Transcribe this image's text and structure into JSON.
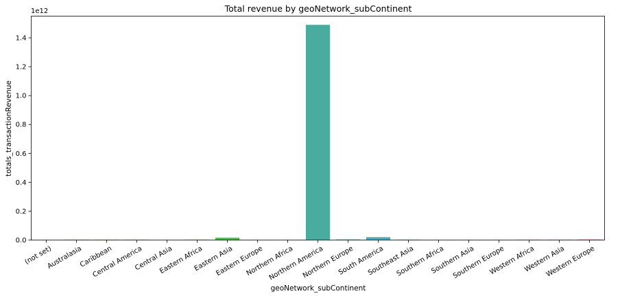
{
  "chart_data": {
    "type": "bar",
    "title": "Total revenue by geoNetwork_subContinent",
    "xlabel": "geoNetwork_subContinent",
    "ylabel": "totals_transactionRevenue",
    "y_offset_label": "1e12",
    "ylim": [
      0,
      1.55
    ],
    "yticks": [
      "0.0",
      "0.2",
      "0.4",
      "0.6",
      "0.8",
      "1.0",
      "1.2",
      "1.4"
    ],
    "categories": [
      "(not set)",
      "Australasia",
      "Caribbean",
      "Central America",
      "Central Asia",
      "Eastern Africa",
      "Eastern Asia",
      "Eastern Europe",
      "Northern Africa",
      "Northern America",
      "Northern Europe",
      "South America",
      "Southeast Asia",
      "Southern Africa",
      "Southern Asia",
      "Southern Europe",
      "Western Africa",
      "Western Asia",
      "Western Europe"
    ],
    "values": [
      0.0,
      0.003,
      0.003,
      0.003,
      0.0,
      0.003,
      0.016,
      0.001,
      0.0,
      1.49,
      0.004,
      0.02,
      0.003,
      0.0,
      0.001,
      0.001,
      0.003,
      0.003,
      0.004
    ],
    "colors": [
      "#e8776c",
      "#d98846",
      "#c59a2c",
      "#b3a22c",
      "#9fab2c",
      "#7fb33b",
      "#4fb84f",
      "#4cb07e",
      "#4db097",
      "#4aac9f",
      "#4caaad",
      "#4ea9bd",
      "#52a6cf",
      "#6d9fe3",
      "#9a96ea",
      "#bb8aea",
      "#d77fdf",
      "#e577c5",
      "#ea76a6"
    ],
    "grid": false,
    "legend": "none"
  }
}
